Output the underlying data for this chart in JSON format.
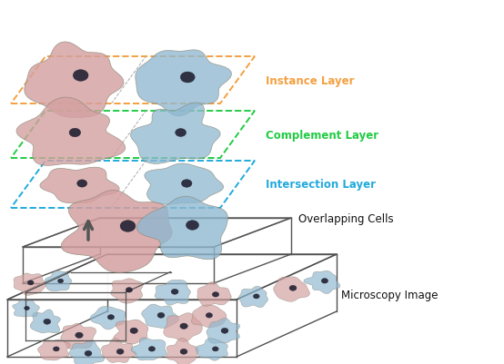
{
  "labels": {
    "instance_layer": "Instance Layer",
    "complement_layer": "Complement Layer",
    "intersection_layer": "Intersection Layer",
    "overlapping_cells": "Overlapping Cells",
    "microscopy_image": "Microscopy Image"
  },
  "colors": {
    "instance_border": "#F4A040",
    "complement_border": "#22CC44",
    "intersection_border": "#22AADD",
    "instance_text": "#F4A040",
    "complement_text": "#22CC44",
    "intersection_text": "#22AADD",
    "overlapping_text": "#111111",
    "microscopy_text": "#111111",
    "box_edge": "#555555",
    "arrow": "#555555",
    "cell_pink": "#D4A0A0",
    "cell_blue": "#90B8D0",
    "cell_pink_dark": "#B08080",
    "cell_blue_dark": "#6090A8",
    "nucleus": "#222233",
    "background": "#ffffff"
  },
  "figsize": [
    5.54,
    4.02
  ],
  "dpi": 100
}
